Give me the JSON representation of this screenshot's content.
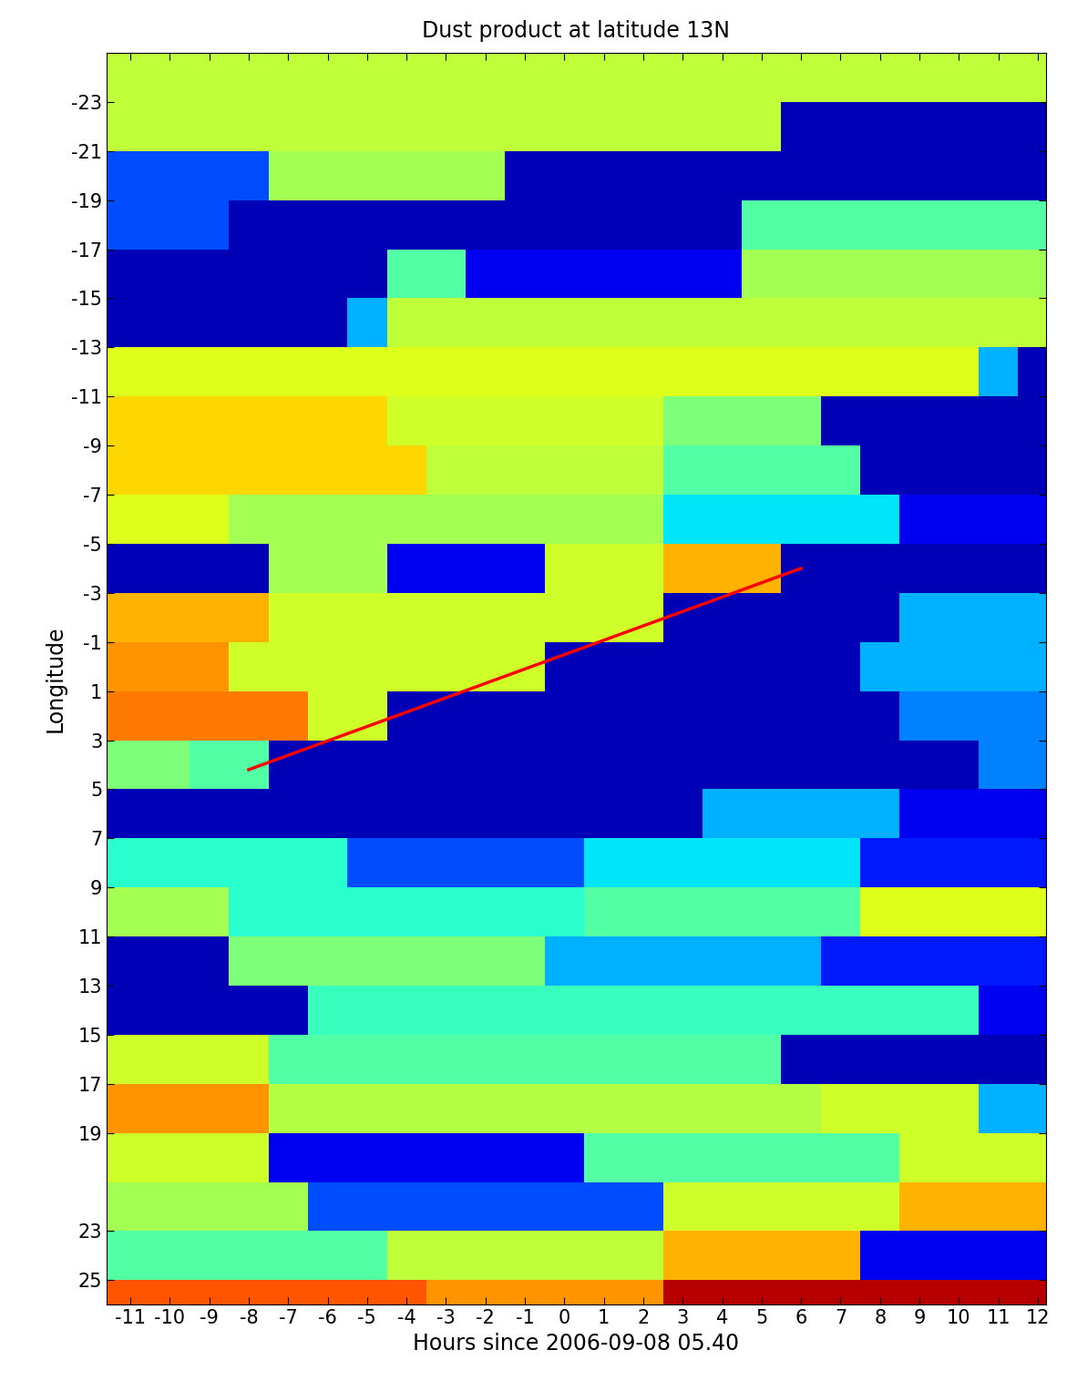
{
  "chart_data": {
    "type": "heatmap",
    "title": "Dust product at latitude 13N",
    "x_label": "Hours since 2006-09-08 05.40",
    "y_label": "Longitude",
    "xlim": [
      -11.6,
      12.2
    ],
    "ylim": [
      26,
      -25
    ],
    "xticks": [
      -11,
      -10,
      -9,
      -8,
      -7,
      -6,
      -5,
      -4,
      -3,
      -2,
      -1,
      0,
      1,
      2,
      3,
      4,
      5,
      6,
      7,
      8,
      9,
      10,
      11,
      12
    ],
    "yticks": [
      -23,
      -21,
      -19,
      -17,
      -15,
      -13,
      -11,
      -9,
      -7,
      -5,
      -3,
      -1,
      1,
      3,
      5,
      7,
      9,
      11,
      13,
      15,
      17,
      19,
      23,
      25
    ],
    "x": [
      -12,
      -11,
      -10,
      -9,
      -8,
      -7,
      -6,
      -5,
      -4,
      -3,
      -2,
      -1,
      0,
      1,
      2,
      3,
      4,
      5,
      6,
      7,
      8,
      9,
      10,
      11,
      12
    ],
    "y": [
      -24,
      -22,
      -20,
      -18,
      -16,
      -14,
      -12,
      -10,
      -8,
      -6,
      -4,
      -2,
      0,
      2,
      4,
      6,
      8,
      10,
      12,
      14,
      16,
      18,
      20,
      22,
      24,
      26
    ],
    "zlim": [
      0,
      1
    ],
    "cells": [
      [
        0.58,
        0.58,
        0.58,
        0.58,
        0.58,
        0.58,
        0.58,
        0.58,
        0.58,
        0.58,
        0.58,
        0.58,
        0.58,
        0.58,
        0.58,
        0.58,
        0.58,
        0.58,
        0.58,
        0.58,
        0.58,
        0.58,
        0.58,
        0.58,
        0.58
      ],
      [
        0.58,
        0.58,
        0.58,
        0.58,
        0.58,
        0.58,
        0.58,
        0.58,
        0.58,
        0.58,
        0.58,
        0.58,
        0.58,
        0.58,
        0.58,
        0.58,
        0.58,
        0.58,
        0.05,
        0.05,
        0.05,
        0.05,
        0.05,
        0.05,
        0.05
      ],
      [
        0.2,
        0.2,
        0.2,
        0.2,
        0.2,
        0.55,
        0.55,
        0.55,
        0.55,
        0.55,
        0.55,
        0.05,
        0.05,
        0.05,
        0.05,
        0.05,
        0.05,
        0.05,
        0.05,
        0.05,
        0.05,
        0.05,
        0.05,
        0.05,
        0.05
      ],
      [
        0.2,
        0.2,
        0.2,
        0.2,
        0.05,
        0.05,
        0.05,
        0.05,
        0.05,
        0.05,
        0.05,
        0.05,
        0.05,
        0.05,
        0.05,
        0.05,
        0.05,
        0.45,
        0.45,
        0.45,
        0.45,
        0.45,
        0.45,
        0.45,
        0.45
      ],
      [
        0.05,
        0.05,
        0.05,
        0.05,
        0.05,
        0.05,
        0.05,
        0.05,
        0.45,
        0.45,
        0.1,
        0.1,
        0.1,
        0.1,
        0.1,
        0.1,
        0.1,
        0.55,
        0.55,
        0.55,
        0.55,
        0.55,
        0.55,
        0.55,
        0.55
      ],
      [
        0.05,
        0.05,
        0.05,
        0.05,
        0.05,
        0.05,
        0.05,
        0.3,
        0.58,
        0.58,
        0.58,
        0.58,
        0.58,
        0.58,
        0.58,
        0.58,
        0.58,
        0.58,
        0.58,
        0.58,
        0.58,
        0.58,
        0.58,
        0.58,
        0.58
      ],
      [
        0.62,
        0.62,
        0.62,
        0.62,
        0.62,
        0.62,
        0.62,
        0.62,
        0.62,
        0.62,
        0.62,
        0.62,
        0.62,
        0.62,
        0.62,
        0.62,
        0.62,
        0.62,
        0.62,
        0.62,
        0.62,
        0.62,
        0.62,
        0.3,
        0.05
      ],
      [
        0.68,
        0.68,
        0.68,
        0.68,
        0.68,
        0.68,
        0.68,
        0.68,
        0.6,
        0.6,
        0.6,
        0.6,
        0.6,
        0.6,
        0.6,
        0.5,
        0.5,
        0.5,
        0.5,
        0.05,
        0.05,
        0.05,
        0.05,
        0.05,
        0.05
      ],
      [
        0.68,
        0.68,
        0.68,
        0.68,
        0.68,
        0.68,
        0.68,
        0.68,
        0.68,
        0.58,
        0.58,
        0.58,
        0.58,
        0.58,
        0.58,
        0.45,
        0.45,
        0.45,
        0.45,
        0.45,
        0.05,
        0.05,
        0.05,
        0.05,
        0.05
      ],
      [
        0.62,
        0.62,
        0.62,
        0.62,
        0.55,
        0.55,
        0.55,
        0.55,
        0.55,
        0.55,
        0.55,
        0.55,
        0.55,
        0.55,
        0.55,
        0.35,
        0.35,
        0.35,
        0.35,
        0.35,
        0.35,
        0.1,
        0.1,
        0.1,
        0.1
      ],
      [
        0.05,
        0.05,
        0.05,
        0.05,
        0.05,
        0.55,
        0.55,
        0.55,
        0.1,
        0.1,
        0.1,
        0.1,
        0.6,
        0.6,
        0.6,
        0.72,
        0.72,
        0.72,
        0.05,
        0.05,
        0.05,
        0.05,
        0.05,
        0.05,
        0.05
      ],
      [
        0.72,
        0.72,
        0.72,
        0.72,
        0.72,
        0.6,
        0.6,
        0.6,
        0.6,
        0.6,
        0.6,
        0.6,
        0.6,
        0.6,
        0.6,
        0.05,
        0.05,
        0.05,
        0.05,
        0.05,
        0.05,
        0.3,
        0.3,
        0.3,
        0.3
      ],
      [
        0.75,
        0.75,
        0.75,
        0.75,
        0.6,
        0.6,
        0.6,
        0.6,
        0.6,
        0.6,
        0.6,
        0.6,
        0.05,
        0.05,
        0.05,
        0.05,
        0.05,
        0.05,
        0.05,
        0.05,
        0.3,
        0.3,
        0.3,
        0.3,
        0.3
      ],
      [
        0.78,
        0.78,
        0.78,
        0.78,
        0.78,
        0.78,
        0.6,
        0.6,
        0.05,
        0.05,
        0.05,
        0.05,
        0.05,
        0.05,
        0.05,
        0.05,
        0.05,
        0.05,
        0.05,
        0.05,
        0.05,
        0.25,
        0.25,
        0.25,
        0.25
      ],
      [
        0.5,
        0.5,
        0.5,
        0.45,
        0.45,
        0.05,
        0.05,
        0.05,
        0.05,
        0.05,
        0.05,
        0.05,
        0.05,
        0.05,
        0.05,
        0.05,
        0.05,
        0.05,
        0.05,
        0.05,
        0.05,
        0.05,
        0.05,
        0.25,
        0.25
      ],
      [
        0.05,
        0.05,
        0.05,
        0.05,
        0.05,
        0.05,
        0.05,
        0.05,
        0.05,
        0.05,
        0.05,
        0.05,
        0.05,
        0.05,
        0.05,
        0.05,
        0.3,
        0.3,
        0.3,
        0.3,
        0.3,
        0.1,
        0.1,
        0.1,
        0.1
      ],
      [
        0.4,
        0.4,
        0.4,
        0.4,
        0.4,
        0.4,
        0.4,
        0.2,
        0.2,
        0.2,
        0.2,
        0.2,
        0.2,
        0.35,
        0.35,
        0.35,
        0.35,
        0.35,
        0.35,
        0.35,
        0.15,
        0.15,
        0.15,
        0.15,
        0.15
      ],
      [
        0.55,
        0.55,
        0.55,
        0.55,
        0.4,
        0.4,
        0.4,
        0.4,
        0.4,
        0.4,
        0.4,
        0.4,
        0.4,
        0.45,
        0.45,
        0.45,
        0.45,
        0.45,
        0.45,
        0.45,
        0.62,
        0.62,
        0.62,
        0.62,
        0.62
      ],
      [
        0.05,
        0.05,
        0.05,
        0.05,
        0.5,
        0.5,
        0.5,
        0.5,
        0.5,
        0.5,
        0.5,
        0.5,
        0.3,
        0.3,
        0.3,
        0.3,
        0.3,
        0.3,
        0.3,
        0.15,
        0.15,
        0.15,
        0.15,
        0.15,
        0.15
      ],
      [
        0.05,
        0.05,
        0.05,
        0.05,
        0.05,
        0.05,
        0.42,
        0.42,
        0.42,
        0.42,
        0.42,
        0.42,
        0.42,
        0.42,
        0.42,
        0.42,
        0.42,
        0.42,
        0.42,
        0.42,
        0.42,
        0.42,
        0.42,
        0.1,
        0.1
      ],
      [
        0.6,
        0.6,
        0.6,
        0.6,
        0.6,
        0.45,
        0.45,
        0.45,
        0.45,
        0.45,
        0.45,
        0.45,
        0.45,
        0.45,
        0.45,
        0.45,
        0.45,
        0.45,
        0.05,
        0.05,
        0.05,
        0.05,
        0.05,
        0.05,
        0.05
      ],
      [
        0.75,
        0.75,
        0.75,
        0.75,
        0.75,
        0.57,
        0.57,
        0.57,
        0.57,
        0.57,
        0.57,
        0.57,
        0.57,
        0.57,
        0.57,
        0.57,
        0.57,
        0.57,
        0.57,
        0.6,
        0.6,
        0.6,
        0.6,
        0.3,
        0.3
      ],
      [
        0.6,
        0.6,
        0.6,
        0.6,
        0.6,
        0.1,
        0.1,
        0.1,
        0.1,
        0.1,
        0.1,
        0.1,
        0.1,
        0.45,
        0.45,
        0.45,
        0.45,
        0.45,
        0.45,
        0.45,
        0.45,
        0.6,
        0.6,
        0.6,
        0.6
      ],
      [
        0.55,
        0.55,
        0.55,
        0.55,
        0.55,
        0.55,
        0.2,
        0.2,
        0.2,
        0.2,
        0.2,
        0.2,
        0.2,
        0.2,
        0.2,
        0.6,
        0.6,
        0.6,
        0.6,
        0.6,
        0.6,
        0.72,
        0.72,
        0.72,
        0.72
      ],
      [
        0.45,
        0.45,
        0.45,
        0.45,
        0.45,
        0.45,
        0.45,
        0.45,
        0.58,
        0.58,
        0.58,
        0.58,
        0.58,
        0.58,
        0.58,
        0.72,
        0.72,
        0.72,
        0.72,
        0.72,
        0.1,
        0.1,
        0.1,
        0.1,
        0.1
      ],
      [
        0.82,
        0.82,
        0.82,
        0.82,
        0.82,
        0.82,
        0.82,
        0.82,
        0.82,
        0.75,
        0.75,
        0.75,
        0.75,
        0.75,
        0.75,
        0.95,
        0.95,
        0.95,
        0.95,
        0.95,
        0.95,
        0.95,
        0.95,
        0.95,
        0.95
      ]
    ],
    "line": {
      "x": [
        -8,
        6
      ],
      "values": [
        4.2,
        -4
      ],
      "color": "#ff0000"
    }
  }
}
